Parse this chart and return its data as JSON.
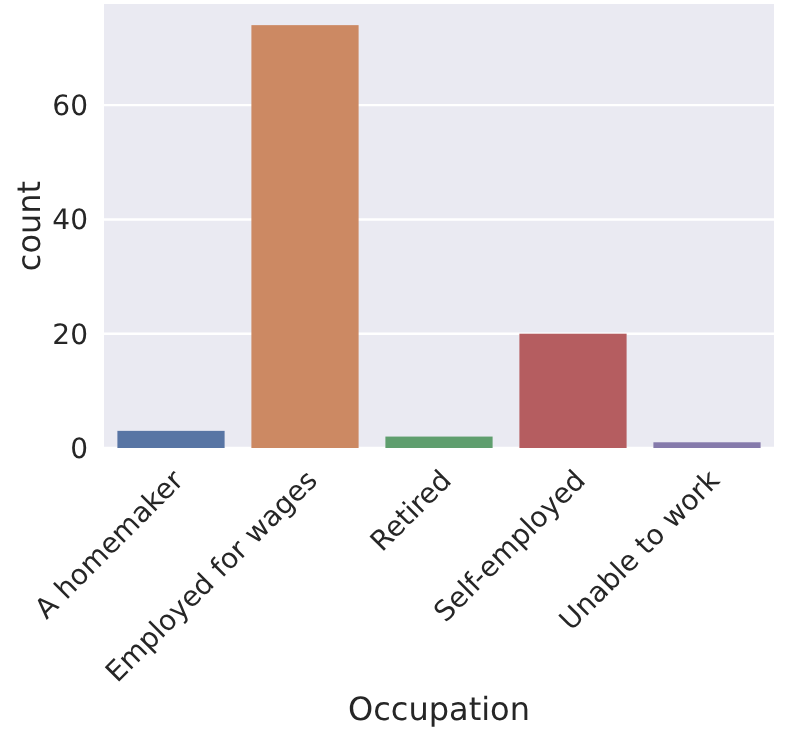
{
  "chart_data": {
    "type": "bar",
    "xlabel": "Occupation",
    "ylabel": "count",
    "categories": [
      "A homemaker",
      "Employed for wages",
      "Retired",
      "Self-employed",
      "Unable to work"
    ],
    "values": [
      3,
      74,
      2,
      20,
      1
    ],
    "colors": [
      "#5875a4",
      "#cc8963",
      "#5f9e6e",
      "#b55d60",
      "#857aab"
    ],
    "ylim": [
      0,
      77.7
    ],
    "yticks": [
      0,
      20,
      40,
      60
    ],
    "grid": "y"
  }
}
